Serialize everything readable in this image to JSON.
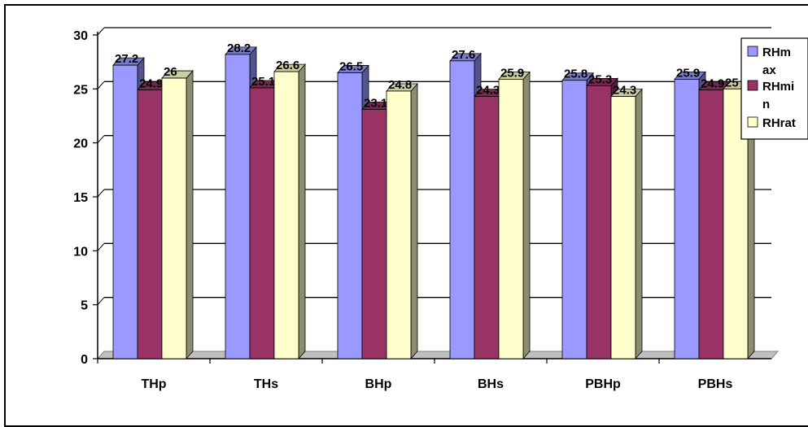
{
  "chart_data": {
    "type": "bar",
    "categories": [
      "THp",
      "THs",
      "BHp",
      "BHs",
      "PBHp",
      "PBHs"
    ],
    "series": [
      {
        "name": "RHmax",
        "values": [
          27.2,
          28.2,
          26.5,
          27.6,
          25.8,
          25.9
        ],
        "labels": [
          "27.2",
          "28.2",
          "26.5",
          "27.6",
          "25.8",
          "25.9"
        ],
        "color": "#9999ff"
      },
      {
        "name": "RHmin",
        "values": [
          24.9,
          25.1,
          23.1,
          24.3,
          25.3,
          24.9
        ],
        "labels": [
          "24.9",
          "25.1",
          "23.1",
          "24.3",
          "25.3",
          "24.9"
        ],
        "color": "#993366"
      },
      {
        "name": "RHrat",
        "values": [
          26,
          26.6,
          24.8,
          25.9,
          24.3,
          25
        ],
        "labels": [
          "26",
          "26.6",
          "24.8",
          "25.9",
          "24.3",
          "25"
        ],
        "color": "#ffffcc"
      }
    ],
    "yticks": [
      "0",
      "5",
      "10",
      "15",
      "20",
      "25",
      "30"
    ],
    "ylim": [
      0,
      30
    ],
    "legend": {
      "position": "right",
      "lines": [
        [
          "RHm",
          "ax"
        ],
        [
          "RHmi",
          "n"
        ],
        [
          "RHrat"
        ]
      ]
    },
    "grid": true,
    "title": "",
    "xlabel": "",
    "ylabel": ""
  }
}
